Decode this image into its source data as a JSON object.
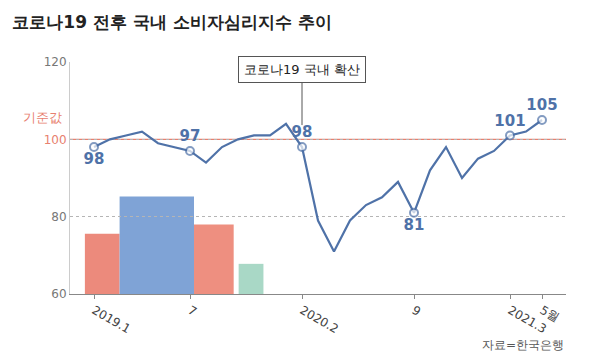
{
  "chart_data": {
    "type": "line",
    "title": "코로나19 전후 국내 소비자심리지수 추이",
    "source": "자료=한국은행",
    "categories": [
      "2019.1",
      null,
      null,
      null,
      null,
      null,
      "7",
      null,
      null,
      null,
      null,
      null,
      null,
      "2020.2",
      null,
      null,
      null,
      null,
      null,
      null,
      "9",
      null,
      null,
      null,
      null,
      null,
      "2021.3",
      null,
      "5월"
    ],
    "values": [
      98,
      100,
      101,
      102,
      99,
      98,
      97,
      94,
      98,
      100,
      101,
      101,
      104,
      98,
      79,
      71,
      79,
      83,
      85,
      89,
      81,
      92,
      98,
      90,
      95,
      97,
      101,
      102,
      105
    ],
    "value_labels": [
      "98",
      null,
      null,
      null,
      null,
      null,
      "97",
      null,
      null,
      null,
      null,
      null,
      null,
      "98",
      null,
      null,
      null,
      null,
      null,
      null,
      "81",
      null,
      null,
      null,
      null,
      null,
      "101",
      null,
      "105"
    ],
    "color": "#4f72a8",
    "marker": "circle",
    "ylim": [
      60,
      120
    ],
    "yticks": [
      60,
      80,
      100,
      120
    ],
    "grid": true,
    "reference_line": {
      "value": 100,
      "label": "기준값",
      "color": "#e8806f"
    },
    "annotations": [
      {
        "x": "2020.2",
        "text": "코로나19 국내 확산"
      }
    ]
  }
}
